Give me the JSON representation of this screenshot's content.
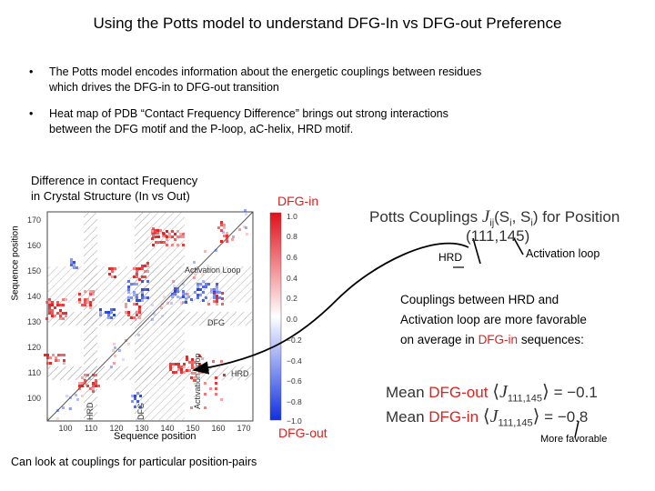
{
  "slide": {
    "title": "Using the Potts model to understand DFG-In vs DFG-out Preference",
    "bullets": [
      {
        "line1": "The Potts model encodes information about the energetic couplings between residues",
        "line2": "which drives the DFG-in to DFG-out transition"
      },
      {
        "line1": "Heat map of PDB “Contact Frequency Difference” brings out strong interactions",
        "line2": "between the DFG motif and the P-loop, aC-helix, HRD motif."
      }
    ],
    "bullet_marker": "•",
    "heatmap_title_line1": "Difference in contact Frequency",
    "heatmap_title_line2": "in Crystal Structure (In vs Out)",
    "ylabel": "Sequence position",
    "xlabel": "Sequence position",
    "x_ticks": [
      "100",
      "110",
      "120",
      "130",
      "140",
      "150",
      "160",
      "170"
    ],
    "y_ticks": [
      "170",
      "160",
      "150",
      "140",
      "130",
      "120",
      "110",
      "100"
    ],
    "region_labels": {
      "activation_loop": "Activation Loop",
      "dfg": "DFG",
      "hrd": "HRD",
      "dfg_vertical": "DFG",
      "hrd_vertical": "HRD",
      "activation_loop_vertical": "Activation Loop"
    },
    "colorbar_ticks": [
      "1.0",
      "0.8",
      "0.6",
      "0.4",
      "0.2",
      "0.0",
      "−0.2",
      "−0.4",
      "−0.6",
      "−0.8",
      "−1.0"
    ],
    "dfg_in_label": "DFG-in",
    "dfg_out_label": "DFG-out",
    "potts_prefix": "Potts Couplings",
    "potts_symbol": "J",
    "potts_subscript": "ij",
    "potts_args": "(S",
    "potts_args_sub1": "i",
    "potts_args_mid": ", S",
    "potts_args_sub2": "i",
    "potts_args_end": ")",
    "potts_suffix": "for Position",
    "position_pair": "(111,145)",
    "hrd_label": "HRD",
    "activation_loop_label": "Activation loop",
    "couplings_line1": "Couplings between HRD and",
    "couplings_line2": "Activation loop are more favorable",
    "couplings_line3_pre": "on average in ",
    "couplings_line3_red": "DFG-in",
    "couplings_line3_post": " sequences:",
    "mean_word": "Mean",
    "mean_out_label": "DFG-out",
    "mean_in_label": "DFG-in",
    "mean_subscript": "111,145",
    "mean_out_value": "−0.1",
    "mean_in_value": "−0.8",
    "more_favorable": "More favorable",
    "footer": "Can look at couplings for particular position-pairs"
  }
}
